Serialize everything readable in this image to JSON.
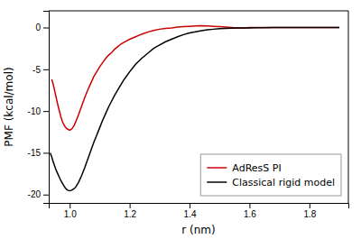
{
  "chart_data": {
    "type": "line",
    "title": "",
    "xlabel": "r (nm)",
    "ylabel": "PMF (kcal/mol)",
    "xlim": [
      0.93,
      1.93
    ],
    "ylim": [
      -21,
      2
    ],
    "xticks": [
      {
        "value": 1.0,
        "label": "1.0"
      },
      1.2,
      1.4,
      1.6,
      1.8
    ],
    "yticks": [
      0,
      -5,
      -10,
      -15,
      -20
    ],
    "grid": false,
    "legend": "lower right",
    "series": [
      {
        "name": "AdResS PI",
        "color": "#cc0000",
        "x": [
          0.94,
          0.945,
          0.95,
          0.955,
          0.96,
          0.965,
          0.97,
          0.975,
          0.98,
          0.985,
          0.99,
          0.995,
          1.0,
          1.005,
          1.01,
          1.015,
          1.02,
          1.03,
          1.04,
          1.05,
          1.06,
          1.07,
          1.08,
          1.09,
          1.1,
          1.11,
          1.12,
          1.13,
          1.14,
          1.15,
          1.16,
          1.17,
          1.18,
          1.19,
          1.2,
          1.22,
          1.24,
          1.26,
          1.28,
          1.3,
          1.32,
          1.34,
          1.36,
          1.38,
          1.4,
          1.42,
          1.44,
          1.46,
          1.48,
          1.5,
          1.52,
          1.54,
          1.56,
          1.58,
          1.6,
          1.62,
          1.64,
          1.66,
          1.68,
          1.7,
          1.72,
          1.74,
          1.76,
          1.78,
          1.8,
          1.85,
          1.9
        ],
        "values": [
          -6.2,
          -6.8,
          -7.6,
          -8.4,
          -9.2,
          -9.9,
          -10.6,
          -11.2,
          -11.6,
          -11.9,
          -12.1,
          -12.2,
          -12.3,
          -12.2,
          -12.0,
          -11.7,
          -11.3,
          -10.4,
          -9.4,
          -8.4,
          -7.5,
          -6.7,
          -5.9,
          -5.3,
          -4.7,
          -4.2,
          -3.7,
          -3.3,
          -3.0,
          -2.6,
          -2.3,
          -2.0,
          -1.8,
          -1.6,
          -1.4,
          -1.1,
          -0.8,
          -0.55,
          -0.35,
          -0.2,
          -0.1,
          -0.05,
          0.05,
          0.1,
          0.15,
          0.2,
          0.22,
          0.2,
          0.15,
          0.1,
          0.05,
          0.0,
          -0.05,
          -0.05,
          0.0,
          0.0,
          0.0,
          -0.02,
          0.0,
          0.0,
          0.0,
          0.0,
          0.0,
          0.0,
          0.0,
          0.0,
          0.0
        ]
      },
      {
        "name": "Classical rigid model",
        "color": "#000000",
        "x": [
          0.935,
          0.94,
          0.945,
          0.95,
          0.955,
          0.96,
          0.965,
          0.97,
          0.975,
          0.98,
          0.985,
          0.99,
          0.995,
          1.0,
          1.005,
          1.01,
          1.015,
          1.02,
          1.03,
          1.04,
          1.05,
          1.06,
          1.07,
          1.08,
          1.09,
          1.1,
          1.11,
          1.12,
          1.13,
          1.14,
          1.15,
          1.16,
          1.17,
          1.18,
          1.19,
          1.2,
          1.22,
          1.24,
          1.26,
          1.28,
          1.3,
          1.32,
          1.34,
          1.36,
          1.38,
          1.4,
          1.42,
          1.44,
          1.46,
          1.48,
          1.5,
          1.52,
          1.54,
          1.56,
          1.58,
          1.6,
          1.62,
          1.64,
          1.66,
          1.68,
          1.7,
          1.72,
          1.74,
          1.76,
          1.78,
          1.8,
          1.85,
          1.9
        ],
        "values": [
          -15.0,
          -15.5,
          -16.1,
          -16.6,
          -17.1,
          -17.5,
          -17.9,
          -18.3,
          -18.6,
          -18.9,
          -19.2,
          -19.4,
          -19.5,
          -19.55,
          -19.5,
          -19.4,
          -19.3,
          -19.1,
          -18.5,
          -17.7,
          -16.8,
          -15.8,
          -14.8,
          -13.8,
          -12.9,
          -12.0,
          -11.1,
          -10.3,
          -9.5,
          -8.8,
          -8.1,
          -7.5,
          -6.9,
          -6.3,
          -5.8,
          -5.3,
          -4.4,
          -3.7,
          -3.1,
          -2.5,
          -2.1,
          -1.7,
          -1.4,
          -1.1,
          -0.85,
          -0.65,
          -0.5,
          -0.38,
          -0.28,
          -0.2,
          -0.14,
          -0.1,
          -0.07,
          -0.05,
          -0.05,
          -0.05,
          -0.03,
          -0.02,
          0.0,
          0.0,
          0.0,
          0.0,
          0.0,
          0.0,
          0.0,
          0.0,
          0.0,
          0.0
        ]
      }
    ]
  }
}
